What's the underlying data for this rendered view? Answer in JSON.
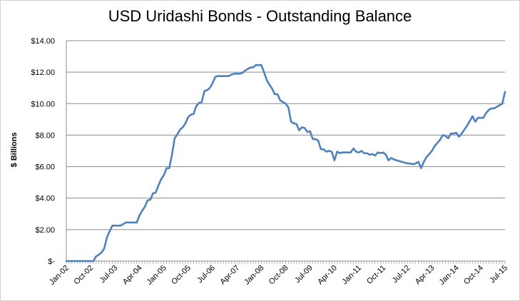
{
  "chart_data": {
    "type": "line",
    "title": "USD Uridashi Bonds - Outstanding Balance",
    "xlabel": "",
    "ylabel": "$ Billions",
    "ylim": [
      0,
      14
    ],
    "grid": true,
    "legend": "none",
    "line_color": "#4f81bd",
    "y_ticks": [
      {
        "value": 0,
        "label": "$-"
      },
      {
        "value": 2,
        "label": "$2.00"
      },
      {
        "value": 4,
        "label": "$4.00"
      },
      {
        "value": 6,
        "label": "$6.00"
      },
      {
        "value": 8,
        "label": "$8.00"
      },
      {
        "value": 10,
        "label": "$10.00"
      },
      {
        "value": 12,
        "label": "$12.00"
      },
      {
        "value": 14,
        "label": "$14.00"
      }
    ],
    "x_ticks": [
      "Jan-02",
      "Oct-02",
      "Jul-03",
      "Apr-04",
      "Jan-05",
      "Oct-05",
      "Jul-06",
      "Apr-07",
      "Jan-08",
      "Oct-08",
      "Jul-09",
      "Apr-10",
      "Jan-11",
      "Oct-11",
      "Jul-12",
      "Apr-13",
      "Jan-14",
      "Oct-14",
      "Jul-15"
    ],
    "series": [
      {
        "start": "Jan-02",
        "frequency": "monthly",
        "values": [
          0,
          0,
          0,
          0,
          0,
          0,
          0,
          0,
          0,
          0,
          0,
          0.3,
          0.4,
          0.55,
          0.8,
          1.5,
          1.9,
          2.25,
          2.25,
          2.25,
          2.25,
          2.35,
          2.45,
          2.45,
          2.45,
          2.45,
          2.45,
          2.9,
          3.2,
          3.45,
          3.85,
          3.9,
          4.3,
          4.35,
          4.8,
          5.2,
          5.45,
          5.9,
          5.9,
          6.75,
          7.8,
          8.05,
          8.35,
          8.5,
          8.75,
          9.15,
          9.3,
          9.35,
          9.85,
          10.05,
          10.1,
          10.8,
          10.85,
          11.0,
          11.3,
          11.7,
          11.75,
          11.75,
          11.75,
          11.75,
          11.75,
          11.85,
          11.9,
          11.9,
          11.9,
          11.95,
          12.1,
          12.2,
          12.3,
          12.3,
          12.45,
          12.45,
          12.45,
          12.0,
          11.5,
          11.2,
          10.95,
          10.6,
          10.6,
          10.2,
          10.1,
          10.0,
          9.75,
          8.85,
          8.75,
          8.7,
          8.3,
          8.5,
          8.45,
          8.2,
          8.25,
          7.75,
          7.75,
          7.65,
          7.1,
          7.1,
          6.95,
          7.0,
          6.95,
          6.4,
          6.95,
          6.85,
          6.9,
          6.9,
          6.9,
          6.9,
          7.15,
          6.95,
          6.9,
          7.0,
          6.85,
          6.85,
          6.75,
          6.8,
          6.7,
          6.9,
          6.85,
          6.9,
          6.75,
          6.4,
          6.55,
          6.45,
          6.4,
          6.35,
          6.3,
          6.25,
          6.2,
          6.2,
          6.15,
          6.2,
          6.3,
          5.9,
          6.3,
          6.6,
          6.8,
          7.0,
          7.3,
          7.5,
          7.7,
          8.0,
          7.95,
          7.8,
          8.1,
          8.1,
          8.15,
          7.9,
          8.1,
          8.35,
          8.6,
          8.9,
          9.2,
          8.85,
          9.1,
          9.1,
          9.1,
          9.4,
          9.6,
          9.7,
          9.7,
          9.8,
          9.9,
          10.0,
          10.75
        ]
      }
    ]
  }
}
